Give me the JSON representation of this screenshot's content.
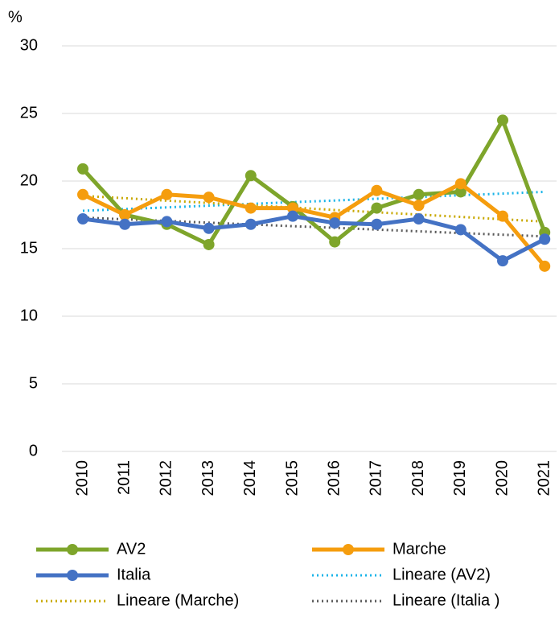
{
  "chart_data": {
    "type": "line",
    "y_label": "%",
    "categories": [
      "2010",
      "2011",
      "2012",
      "2013",
      "2014",
      "2015",
      "2016",
      "2017",
      "2018",
      "2019",
      "2020",
      "2021"
    ],
    "ylim": [
      0,
      30
    ],
    "yticks": [
      0,
      5,
      10,
      15,
      20,
      25,
      30
    ],
    "grid": true,
    "series": [
      {
        "name": "AV2",
        "color": "#7ea52b",
        "style": "solid",
        "markers": true,
        "values": [
          20.9,
          17.5,
          16.8,
          15.3,
          20.4,
          18.1,
          15.5,
          18.0,
          19.0,
          19.2,
          24.5,
          16.2
        ]
      },
      {
        "name": "Marche",
        "color": "#f59d0e",
        "style": "solid",
        "markers": true,
        "values": [
          19.0,
          17.5,
          19.0,
          18.8,
          18.0,
          18.0,
          17.3,
          19.3,
          18.2,
          19.8,
          17.4,
          13.7
        ]
      },
      {
        "name": "Italia",
        "color": "#4472c4",
        "style": "solid",
        "markers": true,
        "values": [
          17.2,
          16.8,
          17.0,
          16.5,
          16.8,
          17.4,
          16.9,
          16.8,
          17.2,
          16.4,
          14.1,
          15.7
        ]
      },
      {
        "name": "Lineare (AV2)",
        "color": "#1ab4e8",
        "style": "dotted",
        "markers": false,
        "values": [
          17.8,
          17.93,
          18.05,
          18.18,
          18.31,
          18.44,
          18.56,
          18.69,
          18.82,
          18.95,
          19.07,
          19.2
        ]
      },
      {
        "name": "Lineare (Marche)",
        "color": "#c8a800",
        "style": "dotted",
        "markers": false,
        "values": [
          18.9,
          18.73,
          18.55,
          18.38,
          18.21,
          18.04,
          17.86,
          17.69,
          17.52,
          17.35,
          17.17,
          17.0
        ]
      },
      {
        "name": "Lineare (Italia )",
        "color": "#595959",
        "style": "dotted",
        "markers": false,
        "values": [
          17.3,
          17.17,
          17.05,
          16.92,
          16.79,
          16.66,
          16.54,
          16.41,
          16.28,
          16.15,
          16.03,
          15.9
        ]
      }
    ]
  }
}
